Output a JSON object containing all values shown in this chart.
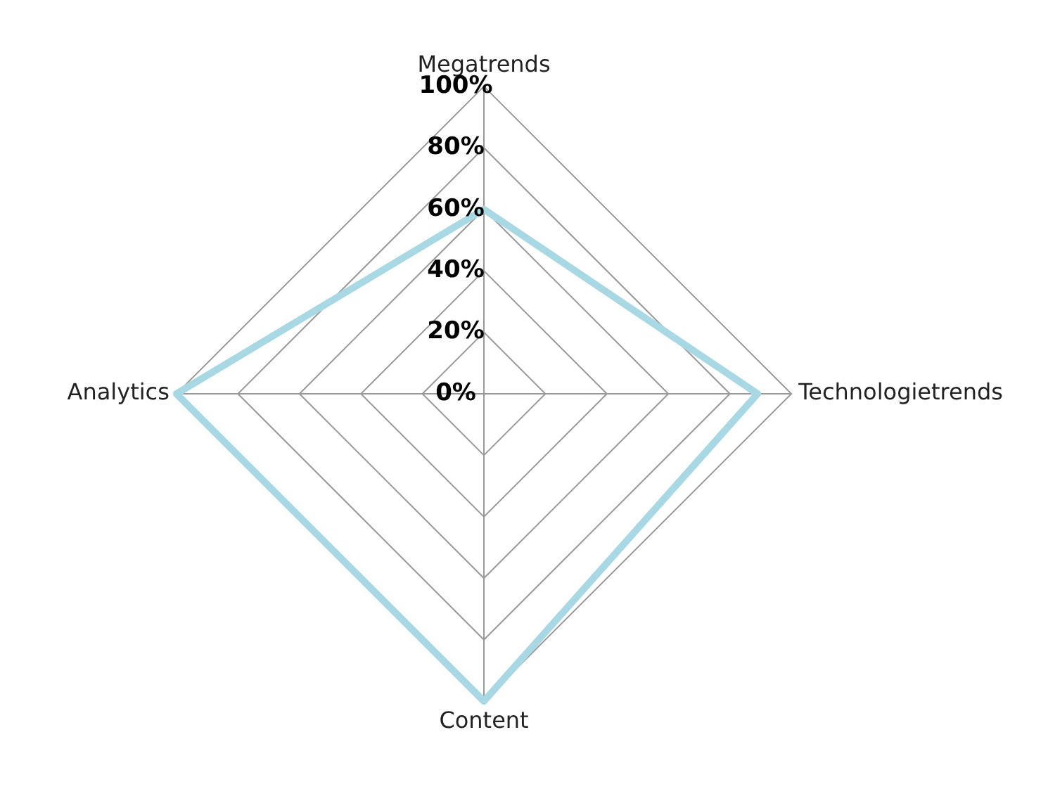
{
  "chart_data": {
    "type": "radar",
    "categories": [
      "Megatrends",
      "Technologietrends",
      "Content",
      "Analytics"
    ],
    "series": [
      {
        "color": "#a8d8e4",
        "values": [
          60,
          89,
          100,
          100
        ]
      }
    ],
    "ylim": [
      0,
      100
    ],
    "yticks": [
      {
        "value": 0,
        "label": "0%"
      },
      {
        "value": 20,
        "label": "20%"
      },
      {
        "value": 40,
        "label": "40%"
      },
      {
        "value": 60,
        "label": "60%"
      },
      {
        "value": 80,
        "label": "80%"
      },
      {
        "value": 100,
        "label": "100%"
      }
    ],
    "grid": true,
    "legend": false,
    "marker": "none",
    "line_style": "solid"
  }
}
